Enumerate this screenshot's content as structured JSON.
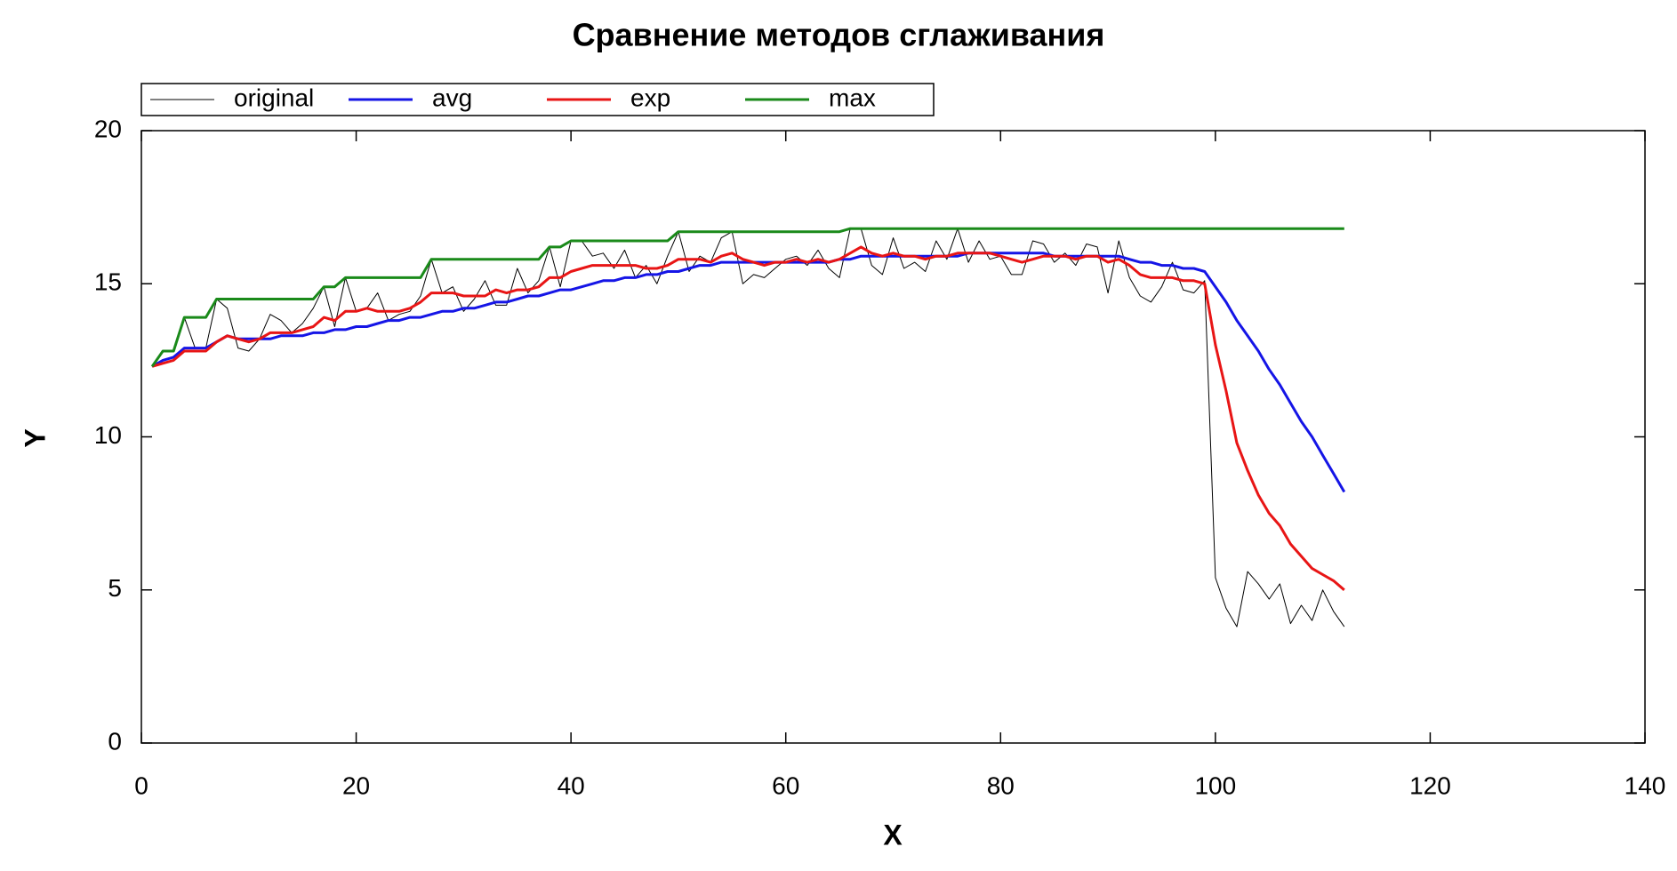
{
  "chart_data": {
    "type": "line",
    "title": "Сравнение методов сглаживания",
    "x_label": "X",
    "y_label": "Y",
    "x": [
      1,
      2,
      3,
      4,
      5,
      6,
      7,
      8,
      9,
      10,
      11,
      12,
      13,
      14,
      15,
      16,
      17,
      18,
      19,
      20,
      21,
      22,
      23,
      24,
      25,
      26,
      27,
      28,
      29,
      30,
      31,
      32,
      33,
      34,
      35,
      36,
      37,
      38,
      39,
      40,
      41,
      42,
      43,
      44,
      45,
      46,
      47,
      48,
      49,
      50,
      51,
      52,
      53,
      54,
      55,
      56,
      57,
      58,
      59,
      60,
      61,
      62,
      63,
      64,
      65,
      66,
      67,
      68,
      69,
      70,
      71,
      72,
      73,
      74,
      75,
      76,
      77,
      78,
      79,
      80,
      81,
      82,
      83,
      84,
      85,
      86,
      87,
      88,
      89,
      90,
      91,
      92,
      93,
      94,
      95,
      96,
      97,
      98,
      99,
      100,
      101,
      102,
      103,
      104,
      105,
      106,
      107,
      108,
      109,
      110,
      111,
      112
    ],
    "series": [
      {
        "name": "original",
        "color": "#000000",
        "width": 1,
        "values": [
          12.3,
          12.8,
          12.8,
          13.9,
          12.9,
          12.9,
          14.5,
          14.2,
          12.9,
          12.8,
          13.2,
          14.0,
          13.8,
          13.4,
          13.7,
          14.2,
          14.9,
          13.6,
          15.2,
          14.1,
          14.2,
          14.7,
          13.8,
          14.0,
          14.1,
          14.6,
          15.8,
          14.7,
          14.9,
          14.1,
          14.5,
          15.1,
          14.3,
          14.3,
          15.5,
          14.7,
          15.1,
          16.2,
          14.9,
          16.4,
          16.4,
          15.9,
          16.0,
          15.5,
          16.1,
          15.2,
          15.6,
          15.0,
          15.9,
          16.7,
          15.4,
          15.9,
          15.7,
          16.5,
          16.7,
          15.0,
          15.3,
          15.2,
          15.5,
          15.8,
          15.9,
          15.6,
          16.1,
          15.5,
          15.2,
          16.8,
          16.8,
          15.6,
          15.3,
          16.5,
          15.5,
          15.7,
          15.4,
          16.4,
          15.8,
          16.8,
          15.7,
          16.4,
          15.8,
          15.9,
          15.3,
          15.3,
          16.4,
          16.3,
          15.7,
          16.0,
          15.6,
          16.3,
          16.2,
          14.7,
          16.4,
          15.2,
          14.6,
          14.4,
          14.9,
          15.7,
          14.8,
          14.7,
          15.1,
          5.4,
          4.4,
          3.8,
          5.6,
          5.2,
          4.7,
          5.2,
          3.9,
          4.5,
          4.0,
          5.0,
          4.3,
          3.8
        ]
      },
      {
        "name": "avg",
        "color": "#1515e6",
        "width": 3,
        "values": [
          12.3,
          12.5,
          12.6,
          12.9,
          12.9,
          12.9,
          13.1,
          13.3,
          13.2,
          13.2,
          13.2,
          13.2,
          13.3,
          13.3,
          13.3,
          13.4,
          13.4,
          13.5,
          13.5,
          13.6,
          13.6,
          13.7,
          13.8,
          13.8,
          13.9,
          13.9,
          14.0,
          14.1,
          14.1,
          14.2,
          14.2,
          14.3,
          14.4,
          14.4,
          14.5,
          14.6,
          14.6,
          14.7,
          14.8,
          14.8,
          14.9,
          15.0,
          15.1,
          15.1,
          15.2,
          15.2,
          15.3,
          15.3,
          15.4,
          15.4,
          15.5,
          15.6,
          15.6,
          15.7,
          15.7,
          15.7,
          15.7,
          15.7,
          15.7,
          15.7,
          15.7,
          15.7,
          15.7,
          15.7,
          15.8,
          15.8,
          15.9,
          15.9,
          15.9,
          15.9,
          15.9,
          15.9,
          15.9,
          15.9,
          15.9,
          15.9,
          16.0,
          16.0,
          16.0,
          16.0,
          16.0,
          16.0,
          16.0,
          16.0,
          15.9,
          15.9,
          15.9,
          15.9,
          15.9,
          15.9,
          15.9,
          15.8,
          15.7,
          15.7,
          15.6,
          15.6,
          15.5,
          15.5,
          15.4,
          14.9,
          14.4,
          13.8,
          13.3,
          12.8,
          12.2,
          11.7,
          11.1,
          10.5,
          10.0,
          9.4,
          8.8,
          8.2
        ]
      },
      {
        "name": "exp",
        "color": "#e81515",
        "width": 3,
        "values": [
          12.3,
          12.4,
          12.5,
          12.8,
          12.8,
          12.8,
          13.1,
          13.3,
          13.2,
          13.1,
          13.2,
          13.4,
          13.4,
          13.4,
          13.5,
          13.6,
          13.9,
          13.8,
          14.1,
          14.1,
          14.2,
          14.1,
          14.1,
          14.1,
          14.2,
          14.4,
          14.7,
          14.7,
          14.7,
          14.6,
          14.6,
          14.6,
          14.8,
          14.7,
          14.8,
          14.8,
          14.9,
          15.2,
          15.2,
          15.4,
          15.5,
          15.6,
          15.6,
          15.6,
          15.6,
          15.6,
          15.5,
          15.5,
          15.6,
          15.8,
          15.8,
          15.8,
          15.7,
          15.9,
          16.0,
          15.8,
          15.7,
          15.6,
          15.7,
          15.7,
          15.8,
          15.7,
          15.8,
          15.7,
          15.8,
          16.0,
          16.2,
          16.0,
          15.9,
          16.0,
          15.9,
          15.9,
          15.8,
          15.9,
          15.9,
          16.0,
          16.0,
          16.0,
          16.0,
          15.9,
          15.8,
          15.7,
          15.8,
          15.9,
          15.9,
          15.9,
          15.8,
          15.9,
          15.9,
          15.7,
          15.8,
          15.6,
          15.3,
          15.2,
          15.2,
          15.2,
          15.1,
          15.1,
          15.0,
          13.0,
          11.5,
          9.8,
          8.9,
          8.1,
          7.5,
          7.1,
          6.5,
          6.1,
          5.7,
          5.5,
          5.3,
          5.0
        ]
      },
      {
        "name": "max",
        "color": "#1a8a1a",
        "width": 3,
        "values": [
          12.3,
          12.8,
          12.8,
          13.9,
          13.9,
          13.9,
          14.5,
          14.5,
          14.5,
          14.5,
          14.5,
          14.5,
          14.5,
          14.5,
          14.5,
          14.5,
          14.9,
          14.9,
          15.2,
          15.2,
          15.2,
          15.2,
          15.2,
          15.2,
          15.2,
          15.2,
          15.8,
          15.8,
          15.8,
          15.8,
          15.8,
          15.8,
          15.8,
          15.8,
          15.8,
          15.8,
          15.8,
          16.2,
          16.2,
          16.4,
          16.4,
          16.4,
          16.4,
          16.4,
          16.4,
          16.4,
          16.4,
          16.4,
          16.4,
          16.7,
          16.7,
          16.7,
          16.7,
          16.7,
          16.7,
          16.7,
          16.7,
          16.7,
          16.7,
          16.7,
          16.7,
          16.7,
          16.7,
          16.7,
          16.7,
          16.8,
          16.8,
          16.8,
          16.8,
          16.8,
          16.8,
          16.8,
          16.8,
          16.8,
          16.8,
          16.8,
          16.8,
          16.8,
          16.8,
          16.8,
          16.8,
          16.8,
          16.8,
          16.8,
          16.8,
          16.8,
          16.8,
          16.8,
          16.8,
          16.8,
          16.8,
          16.8,
          16.8,
          16.8,
          16.8,
          16.8,
          16.8,
          16.8,
          16.8,
          16.8,
          16.8,
          16.8,
          16.8,
          16.8,
          16.8,
          16.8,
          16.8,
          16.8,
          16.8,
          16.8,
          16.8,
          16.8
        ]
      }
    ],
    "xlim": [
      0,
      140
    ],
    "xticks": [
      0,
      20,
      40,
      60,
      80,
      100,
      120,
      140
    ],
    "ylim": [
      0,
      20
    ],
    "yticks": [
      0,
      5,
      10,
      15,
      20
    ],
    "grid": false,
    "legend": "top-left"
  }
}
